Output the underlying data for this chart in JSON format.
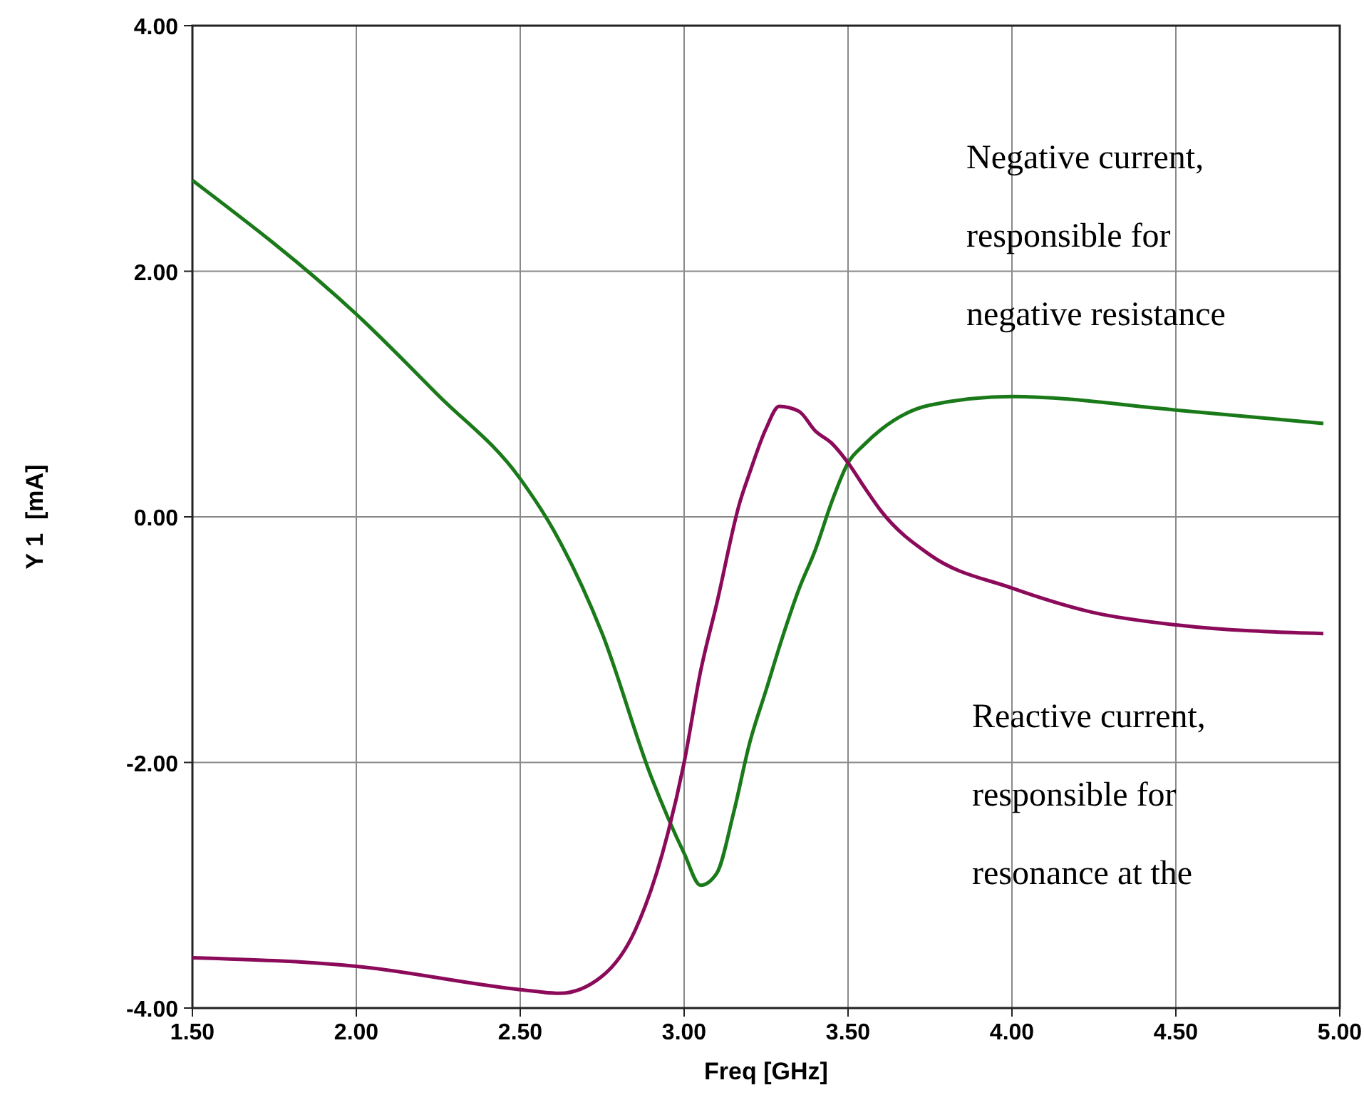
{
  "chart_data": {
    "type": "line",
    "xlabel": "Freq [GHz]",
    "ylabel": "Y 1  [mA]",
    "xlim": [
      1.5,
      5.0
    ],
    "ylim": [
      -4,
      4
    ],
    "xticks": [
      {
        "value": 1.5,
        "label": "1.50"
      },
      {
        "value": 2.0,
        "label": "2.00"
      },
      {
        "value": 2.5,
        "label": "2.50"
      },
      {
        "value": 3.0,
        "label": "3.00"
      },
      {
        "value": 3.5,
        "label": "3.50"
      },
      {
        "value": 4.0,
        "label": "4.00"
      },
      {
        "value": 4.5,
        "label": "4.50"
      },
      {
        "value": 5.0,
        "label": "5.00"
      }
    ],
    "yticks": [
      {
        "value": -4,
        "label": "-4.00"
      },
      {
        "value": -2,
        "label": "-2.00"
      },
      {
        "value": 0,
        "label": "0.00"
      },
      {
        "value": 2,
        "label": "2.00"
      },
      {
        "value": 4,
        "label": "4.00"
      }
    ],
    "grid": true,
    "line_style": "solid",
    "series": [
      {
        "color": "#1a7a1a",
        "x": [
          1.5,
          2.0,
          2.25,
          2.5,
          2.6,
          2.75,
          2.9,
          3.0,
          3.05,
          3.1,
          3.15,
          3.2,
          3.25,
          3.3,
          3.35,
          3.4,
          3.45,
          3.5,
          3.55,
          3.6,
          3.75,
          4.0,
          4.5,
          4.95
        ],
        "values": [
          2.74,
          1.65,
          0.99,
          0.31,
          -0.1,
          -0.95,
          -2.12,
          -2.74,
          -3.0,
          -2.9,
          -2.42,
          -1.84,
          -1.41,
          -0.98,
          -0.59,
          -0.27,
          0.12,
          0.44,
          0.59,
          0.71,
          0.91,
          0.98,
          0.87,
          0.76
        ]
      },
      {
        "color": "#8b0a5a",
        "x": [
          1.5,
          2.0,
          2.5,
          2.62,
          2.75,
          2.85,
          2.95,
          3.0,
          3.05,
          3.1,
          3.17,
          3.2,
          3.25,
          3.29,
          3.35,
          3.4,
          3.45,
          3.5,
          3.55,
          3.6,
          3.75,
          4.0,
          4.25,
          4.5,
          4.95
        ],
        "values": [
          -3.59,
          -3.66,
          -3.85,
          -3.88,
          -3.74,
          -3.37,
          -2.58,
          -2.0,
          -1.26,
          -0.7,
          0.12,
          0.36,
          0.72,
          0.9,
          0.86,
          0.7,
          0.6,
          0.44,
          0.24,
          0.05,
          -0.31,
          -0.58,
          -0.78,
          -0.88,
          -0.95
        ]
      }
    ],
    "annotations": [
      "Negative current,\nresponsible for\nnegative resistance",
      "Reactive current,\nresponsible for\nresonance at the"
    ]
  }
}
